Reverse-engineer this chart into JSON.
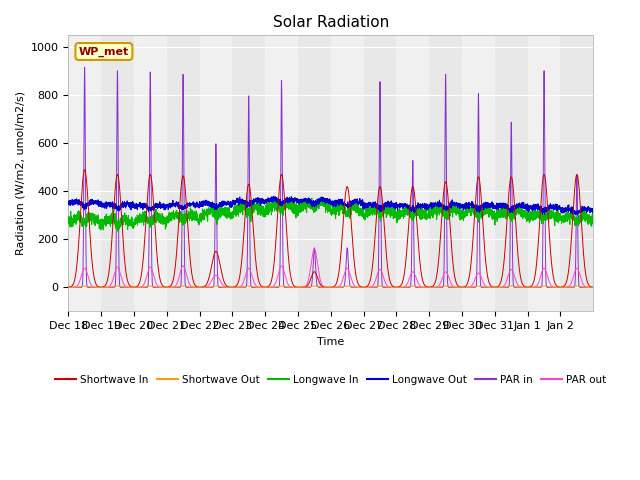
{
  "title": "Solar Radiation",
  "ylabel": "Radiation (W/m2, umol/m2/s)",
  "xlabel": "Time",
  "ylim": [
    -100,
    1050
  ],
  "annotation": "WP_met",
  "series": {
    "shortwave_in": {
      "color": "#cc0000",
      "label": "Shortwave In"
    },
    "shortwave_out": {
      "color": "#ff9900",
      "label": "Shortwave Out"
    },
    "longwave_in": {
      "color": "#00bb00",
      "label": "Longwave In"
    },
    "longwave_out": {
      "color": "#0000cc",
      "label": "Longwave Out"
    },
    "par_in": {
      "color": "#8833cc",
      "label": "PAR in"
    },
    "par_out": {
      "color": "#ff44cc",
      "label": "PAR out"
    }
  },
  "x_tick_labels": [
    "Dec 18",
    "Dec 19",
    "Dec 20",
    "Dec 21",
    "Dec 22",
    "Dec 23",
    "Dec 24",
    "Dec 25",
    "Dec 26",
    "Dec 27",
    "Dec 28",
    "Dec 29",
    "Dec 30",
    "Dec 31",
    "Jan 1",
    "Jan 2"
  ],
  "bg_light": "#e8e8e8",
  "bg_dark": "#d8d8d8",
  "title_fontsize": 11,
  "label_fontsize": 8,
  "tick_fontsize": 8
}
